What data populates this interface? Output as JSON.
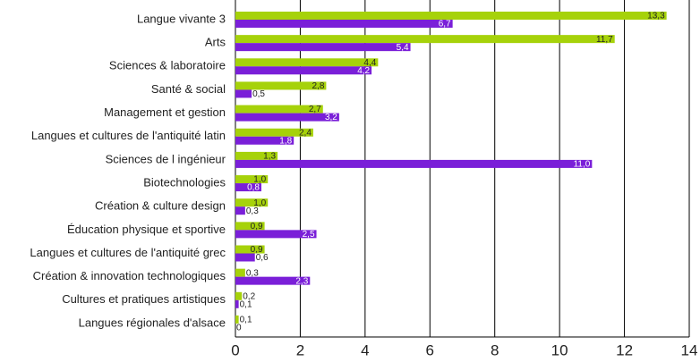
{
  "chart_data": {
    "type": "bar",
    "orientation": "horizontal",
    "categories": [
      "Langue vivante 3",
      "Arts",
      "Sciences & laboratoire",
      "Santé & social",
      "Management et gestion",
      "Langues et cultures de l'antiquité latin",
      "Sciences de l ingénieur",
      "Biotechnologies",
      "Création & culture design",
      "Éducation physique et sportive",
      "Langues et cultures de l'antiquité grec",
      "Création & innovation technologiques",
      "Cultures et pratiques artistiques",
      "Langues régionales d'alsace"
    ],
    "series": [
      {
        "color": "#a6d20a",
        "values": [
          13.3,
          11.7,
          4.4,
          2.8,
          2.7,
          2.4,
          1.3,
          1.0,
          1.0,
          0.9,
          0.9,
          0.3,
          0.2,
          0.1
        ],
        "value_labels": [
          "13,3",
          "11,7",
          "4,4",
          "2,8",
          "2,7",
          "2,4",
          "1,3",
          "1,0",
          "1,0",
          "0,9",
          "0,9",
          "0,3",
          "0,2",
          "0,1"
        ]
      },
      {
        "color": "#7a1fd8",
        "values": [
          6.7,
          5.4,
          4.2,
          0.5,
          3.2,
          1.8,
          11.0,
          0.8,
          0.3,
          2.5,
          0.6,
          2.3,
          0.1,
          0
        ],
        "value_labels": [
          "6,7",
          "5,4",
          "4,2",
          "0,5",
          "3,2",
          "1,8",
          "11,0",
          "0,8",
          "0,3",
          "2,5",
          "0,6",
          "2,3",
          "0,1",
          "0"
        ]
      }
    ],
    "xlim": [
      0,
      14
    ],
    "xticks": [
      0,
      2,
      4,
      6,
      8,
      10,
      12,
      14
    ],
    "grid": true
  }
}
